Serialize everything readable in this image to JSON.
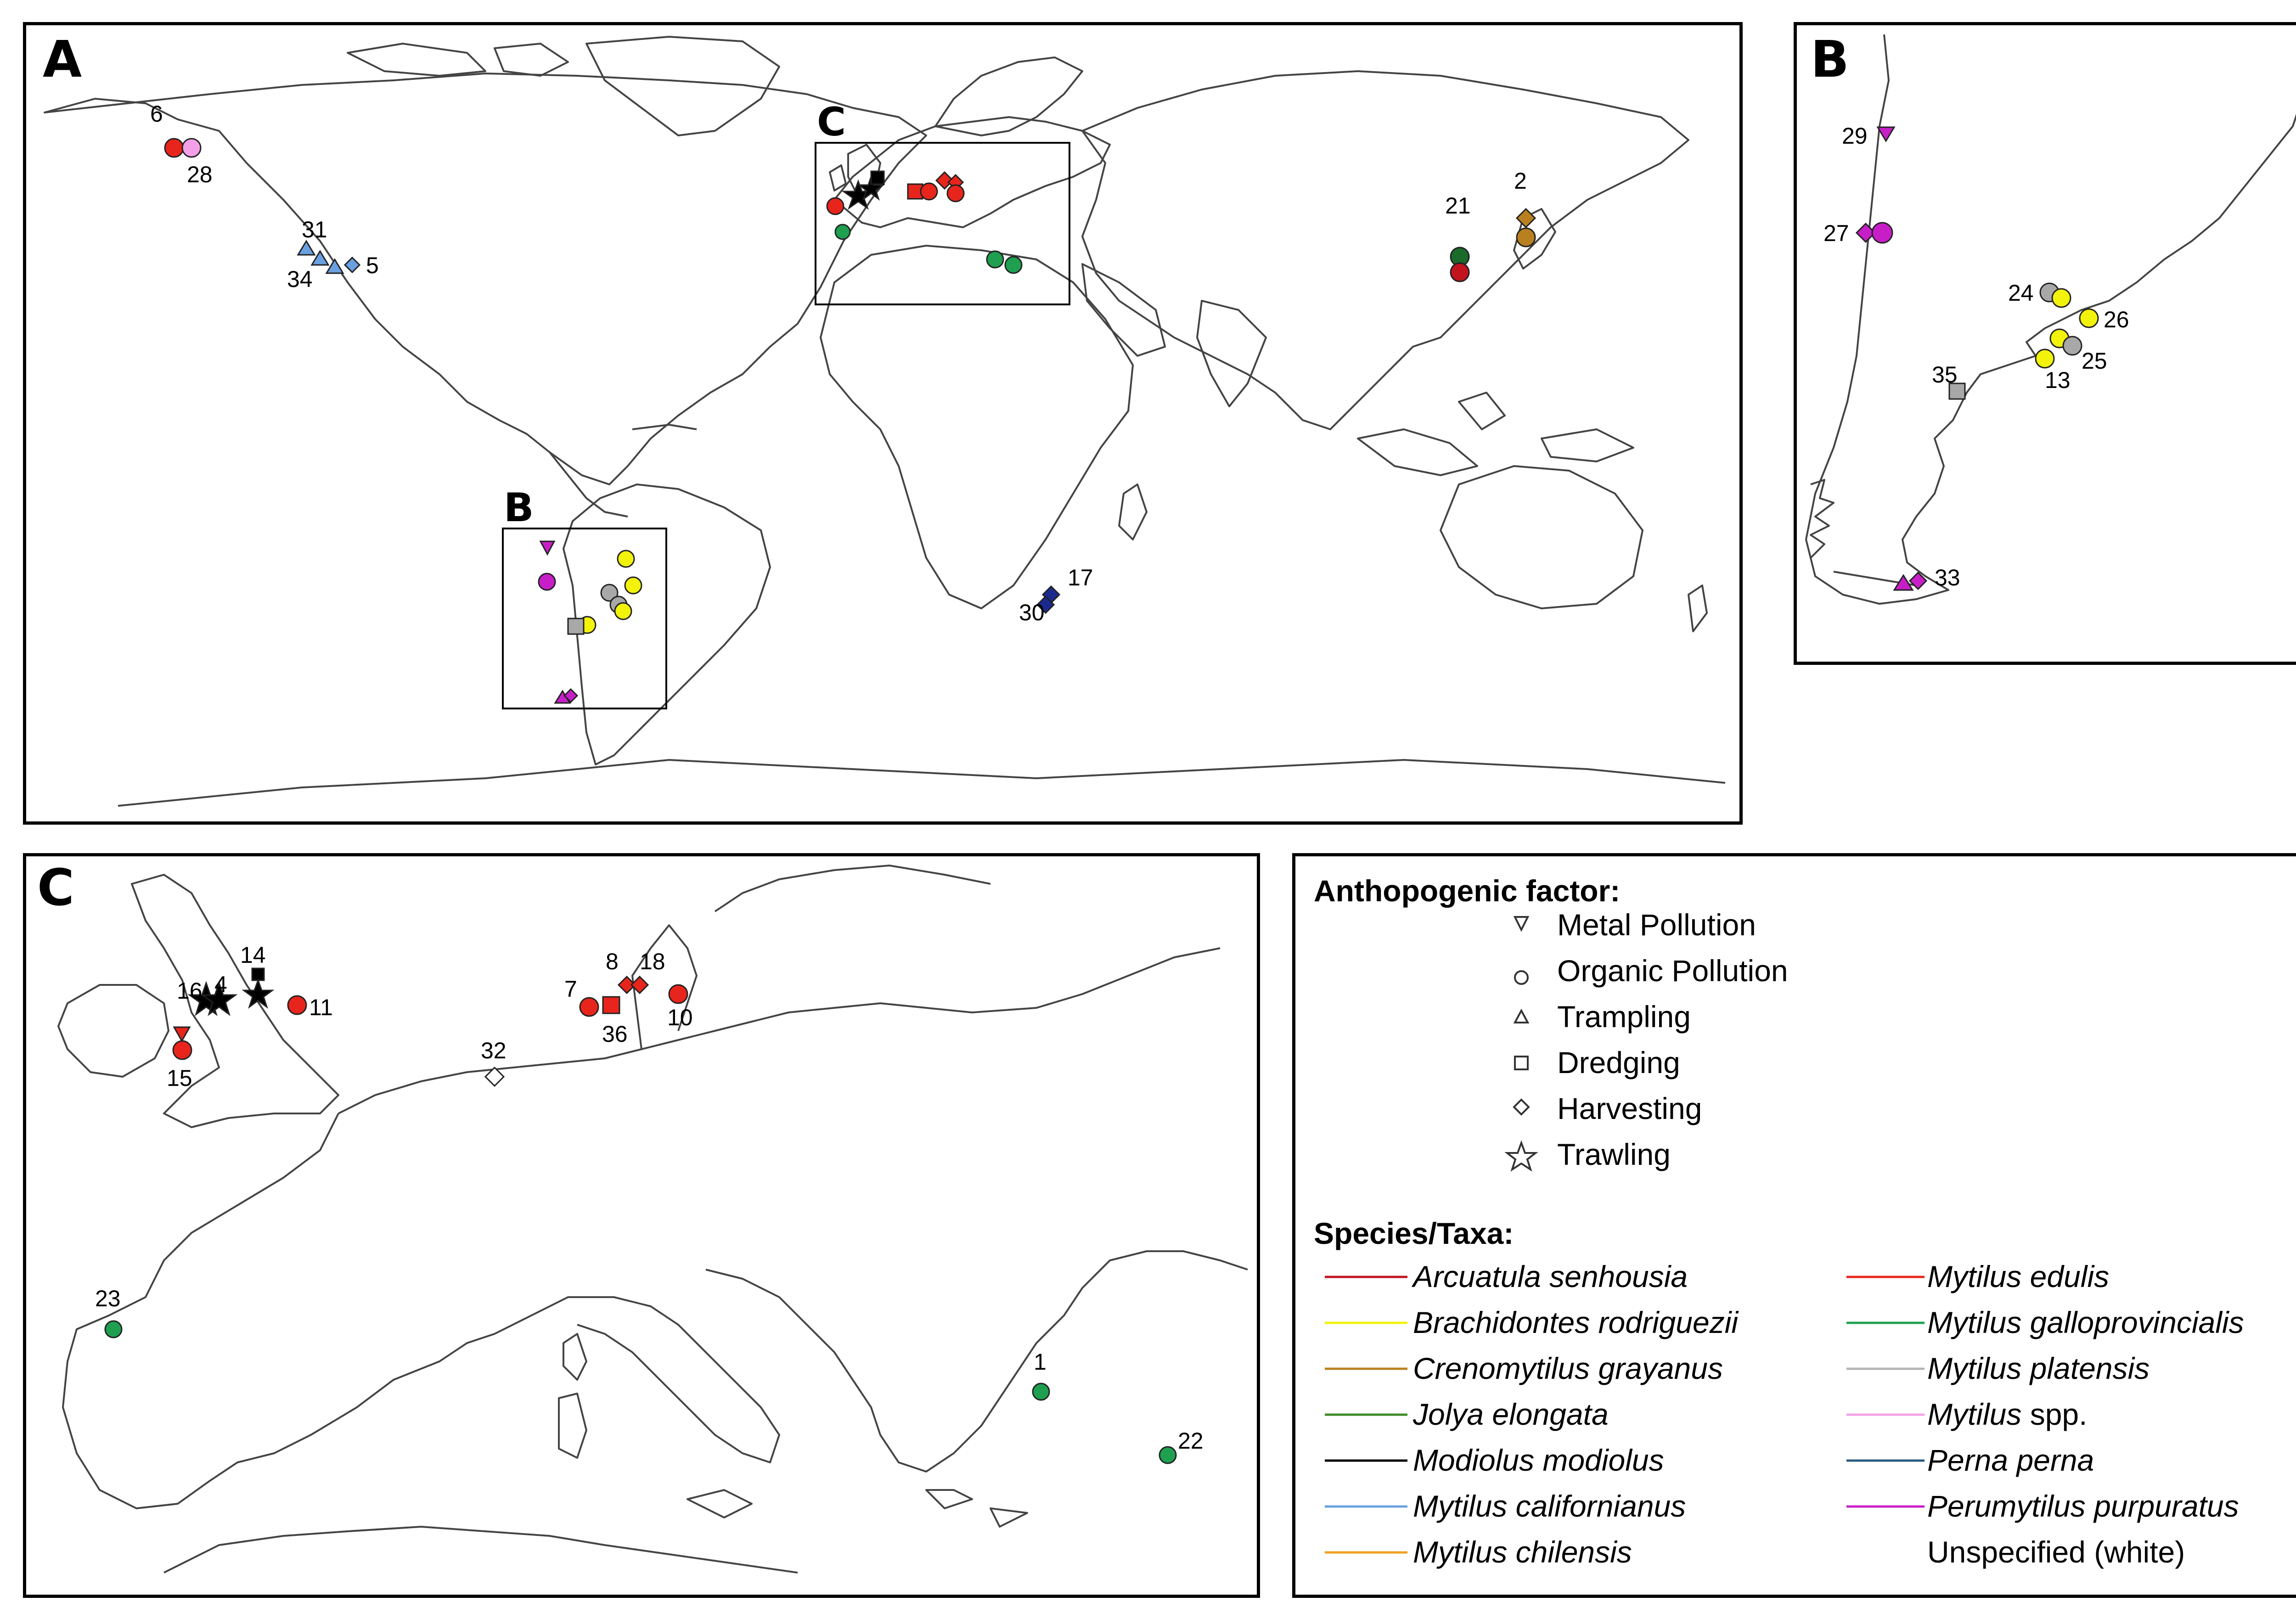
{
  "panel_a": {
    "letter": "A",
    "inset_b_letter": "B",
    "inset_c_letter": "C",
    "site_labels": {
      "s6": "6",
      "s28": "28",
      "s31": "31",
      "s34": "34",
      "s5": "5",
      "s21": "21",
      "s2": "2",
      "s17": "17",
      "s30": "30"
    }
  },
  "panel_b": {
    "letter": "B",
    "site_labels": {
      "s29": "29",
      "s27": "27",
      "s24": "24",
      "s26": "26",
      "s25": "25",
      "s13": "13",
      "s35": "35",
      "s33": "33"
    }
  },
  "panel_c": {
    "letter": "C",
    "site_labels": {
      "s14": "14",
      "s16": "16",
      "s4": "4",
      "s11": "11",
      "s15": "15",
      "s8": "8",
      "s18": "18",
      "s7": "7",
      "s36": "36",
      "s10": "10",
      "s32": "32",
      "s23": "23",
      "s1": "1",
      "s22": "22"
    }
  },
  "legend": {
    "factor_title": "Anthopogenic factor:",
    "factors": [
      {
        "label": "Metal Pollution",
        "shape": "triangle-down"
      },
      {
        "label": "Organic Pollution",
        "shape": "circle"
      },
      {
        "label": "Trampling",
        "shape": "triangle-up"
      },
      {
        "label": "Dredging",
        "shape": "square"
      },
      {
        "label": "Harvesting",
        "shape": "diamond"
      },
      {
        "label": "Trawling",
        "shape": "star"
      }
    ],
    "species_title": "Species/Taxa:",
    "species_left": [
      {
        "name": "Arcuatula senhousia",
        "suffix": "",
        "color": "#c0141e"
      },
      {
        "name": "Brachidontes rodriguezii",
        "suffix": "",
        "color": "#f2f20a"
      },
      {
        "name": "Crenomytilus grayanus",
        "suffix": "",
        "color": "#b8801e"
      },
      {
        "name": "Jolya elongata",
        "suffix": "",
        "color": "#3f8a2a"
      },
      {
        "name": "Modiolus modiolus",
        "suffix": "",
        "color": "#000000"
      },
      {
        "name": "Mytilus californianus",
        "suffix": "",
        "color": "#6aa0e0"
      },
      {
        "name": "Mytilus chilensis",
        "suffix": "",
        "color": "#f0a020"
      }
    ],
    "species_right": [
      {
        "name": "Mytilus edulis",
        "suffix": "",
        "color": "#e8251c"
      },
      {
        "name": "Mytilus galloprovincialis",
        "suffix": "",
        "color": "#1ea050"
      },
      {
        "name": "Mytilus platensis",
        "suffix": "",
        "color": "#b4b4b4"
      },
      {
        "name": "Mytilus",
        "suffix": " spp.",
        "color": "#f4a0e8"
      },
      {
        "name": "Perna perna",
        "suffix": "",
        "color": "#2a5a80"
      },
      {
        "name": "Perumytilus purpuratus",
        "suffix": "",
        "color": "#c81ec8"
      },
      {
        "name": "",
        "suffix": "Unspecified (white)",
        "color": "#ffffff"
      }
    ]
  },
  "colors": {
    "arcuatula": "#c0141e",
    "brachidontes": "#f2f20a",
    "crenomytilus": "#b8801e",
    "jolya": "#3f8a2a",
    "modiolus": "#000000",
    "californianus": "#6aa0e0",
    "edulis": "#e8251c",
    "galloprovincialis": "#1ea050",
    "platensis": "#a8a8a8",
    "spp": "#f4a0e8",
    "perna": "#1c2a90",
    "perumytilus": "#c81ec8",
    "unspecified": "#ffffff"
  }
}
